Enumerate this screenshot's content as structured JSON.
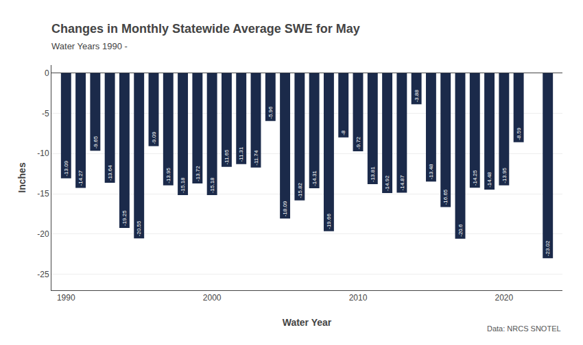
{
  "chart_data": {
    "type": "bar",
    "title": "Changes in Monthly Statewide Average SWE for May",
    "subtitle": "Water Years 1990 -",
    "xlabel": "Water Year",
    "ylabel": "Inches",
    "annotations": [
      "Data: NRCS SNOTEL"
    ],
    "x": [
      1990,
      1991,
      1992,
      1993,
      1994,
      1995,
      1996,
      1997,
      1998,
      1999,
      2000,
      2001,
      2002,
      2003,
      2004,
      2005,
      2006,
      2007,
      2008,
      2009,
      2010,
      2011,
      2012,
      2013,
      2014,
      2015,
      2016,
      2017,
      2018,
      2019,
      2020,
      2021,
      2022,
      2023
    ],
    "values": [
      -13.09,
      -14.27,
      -9.65,
      -13.64,
      -19.25,
      -20.55,
      -9.09,
      -13.95,
      -15.18,
      -13.72,
      -15.18,
      -11.65,
      -11.31,
      -11.74,
      -5.96,
      -18.09,
      -15.82,
      -14.31,
      -19.66,
      -8.0,
      -9.72,
      -13.81,
      -14.92,
      -14.87,
      -3.88,
      -13.48,
      -16.65,
      -20.6,
      -14.25,
      -14.48,
      -13.95,
      -8.59,
      0.0,
      -23.02
    ],
    "value_labels": [
      "-13.09",
      "-14.27",
      "-9.65",
      "-13.64",
      "-19.25",
      "-20.55",
      "-9.09",
      "-13.95",
      "-15.18",
      "-13.72",
      "-15.18",
      "-11.65",
      "-11.31",
      "-11.74",
      "-5.96",
      "-18.09",
      "-15.82",
      "-14.31",
      "-19.66",
      "-8",
      "-9.72",
      "-13.81",
      "-14.92",
      "-14.87",
      "-3.88",
      "-13.48",
      "-16.65",
      "-20.6",
      "-14.25",
      "-14.48",
      "-13.95",
      "-8.59",
      null,
      "-23.02"
    ],
    "data_labels": true,
    "color": "#1b2a4a",
    "xlim": [
      1989,
      2024
    ],
    "xticks": [
      1990,
      2000,
      2010,
      2020
    ],
    "ylim": [
      -27,
      1
    ],
    "yticks": [
      0,
      -5,
      -10,
      -15,
      -20,
      -25
    ],
    "grid": true
  }
}
